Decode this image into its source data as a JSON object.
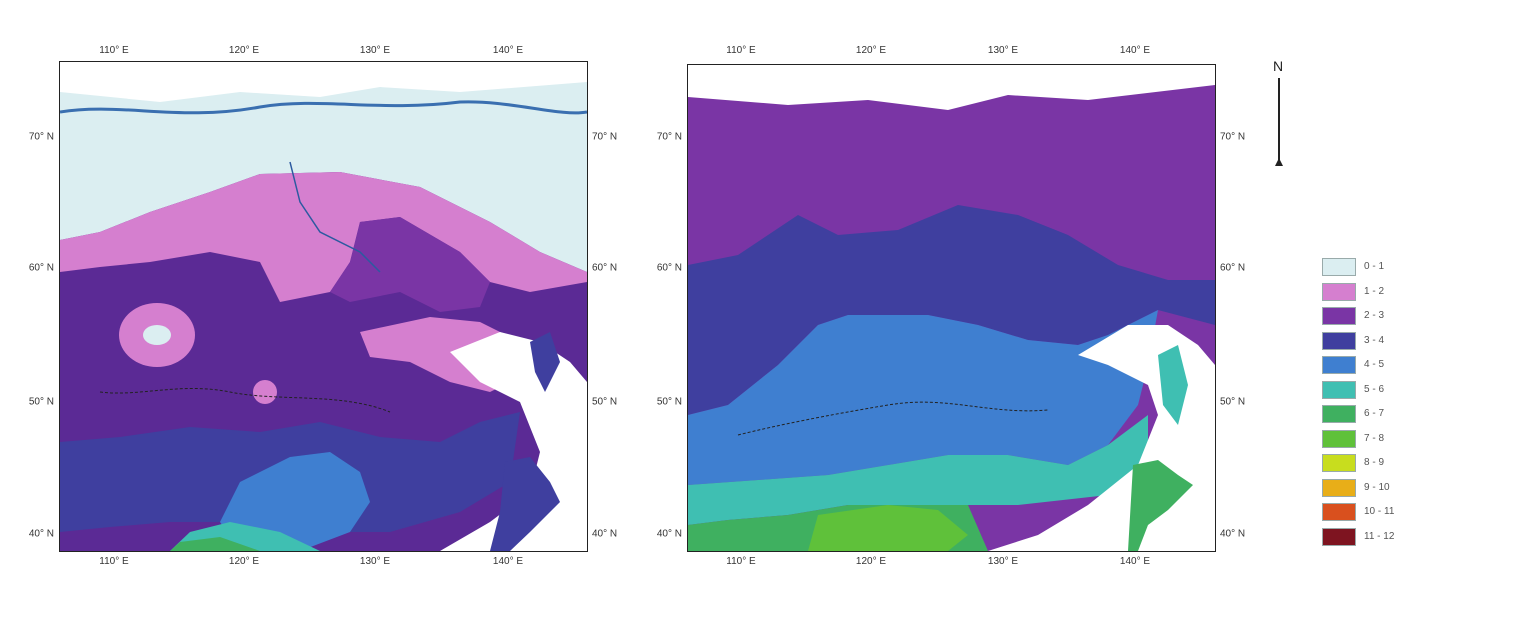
{
  "left_map": {
    "top_labels": [
      "110° E",
      "120° E",
      "130° E",
      "140° E"
    ],
    "bottom_labels": [
      "110° E",
      "120° E",
      "130° E",
      "140° E"
    ],
    "left_labels": [
      "70° N",
      "60° N",
      "50° N",
      "40° N"
    ],
    "right_labels": [
      "70° N",
      "60° N",
      "50° N",
      "40° N"
    ]
  },
  "right_map": {
    "top_labels": [
      "110° E",
      "120° E",
      "130° E",
      "140° E"
    ],
    "bottom_labels": [
      "110° E",
      "120° E",
      "130° E",
      "140° E"
    ],
    "left_labels": [
      "70° N",
      "60° N",
      "50° N",
      "40° N"
    ],
    "right_labels": [
      "70° N",
      "60° N",
      "50° N",
      "40° N"
    ]
  },
  "north": "N",
  "legend": [
    {
      "label": "0 - 1",
      "color": "#dbeef1"
    },
    {
      "label": "1 - 2",
      "color": "#d57fcf"
    },
    {
      "label": "2 - 3",
      "color": "#7a35a5"
    },
    {
      "label": "3 - 4",
      "color": "#3f3f9f"
    },
    {
      "label": "4 - 5",
      "color": "#3f7fd0"
    },
    {
      "label": "5 - 6",
      "color": "#3fbfb2"
    },
    {
      "label": "6 - 7",
      "color": "#3fb060"
    },
    {
      "label": "7 - 8",
      "color": "#5fc13a"
    },
    {
      "label": "8 - 9",
      "color": "#c8dd1e"
    },
    {
      "label": "9 - 10",
      "color": "#e8ae18"
    },
    {
      "label": "10 - 11",
      "color": "#d9501e"
    },
    {
      "label": "11 - 12",
      "color": "#7e1420"
    }
  ]
}
